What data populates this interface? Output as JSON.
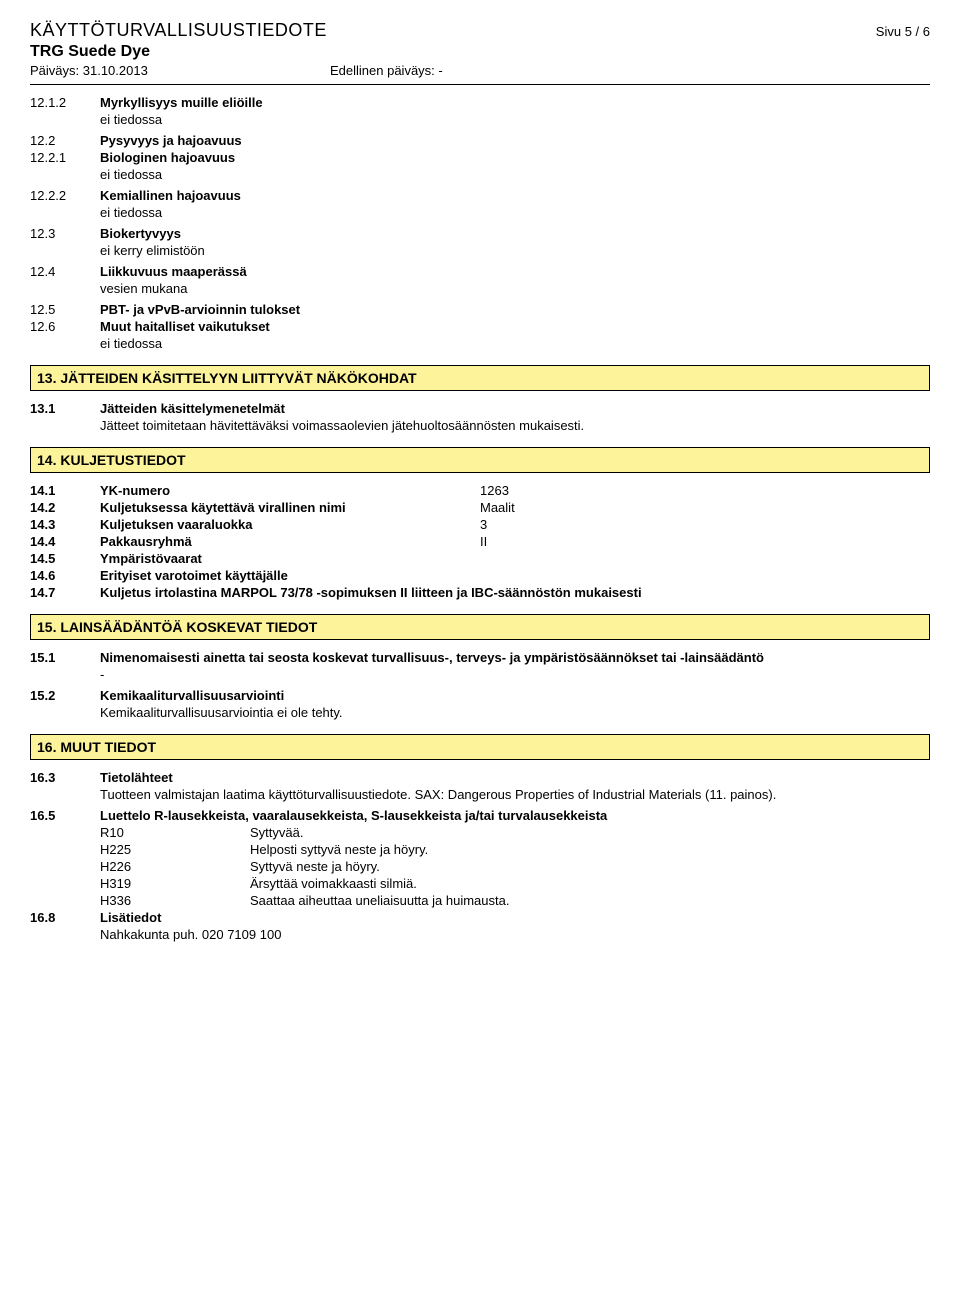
{
  "header": {
    "doc_title": "KÄYTTÖTURVALLISUUSTIEDOTE",
    "page": "Sivu  5 / 6",
    "product": "TRG Suede Dye",
    "date_label": "Päiväys: 31.10.2013",
    "prev_date_label": "Edellinen päiväys: -"
  },
  "items12": [
    {
      "num": "12.1.2",
      "title": "Myrkyllisyys muille eliöille",
      "body": "ei tiedossa"
    },
    {
      "num": "12.2",
      "title": "Pysyvyys ja hajoavuus",
      "body": null
    },
    {
      "num": "12.2.1",
      "title": "Biologinen hajoavuus",
      "body": "ei tiedossa"
    },
    {
      "num": "12.2.2",
      "title": "Kemiallinen hajoavuus",
      "body": "ei tiedossa"
    },
    {
      "num": "12.3",
      "title": "Biokertyvyys",
      "body": "ei kerry elimistöön"
    },
    {
      "num": "12.4",
      "title": "Liikkuvuus maaperässä",
      "body": "vesien mukana"
    },
    {
      "num": "12.5",
      "title": "PBT- ja vPvB-arvioinnin tulokset",
      "body": null
    },
    {
      "num": "12.6",
      "title": "Muut haitalliset vaikutukset",
      "body": "ei tiedossa"
    }
  ],
  "section13": {
    "heading": "13. JÄTTEIDEN KÄSITTELYYN LIITTYVÄT NÄKÖKOHDAT",
    "item": {
      "num": "13.1",
      "title": "Jätteiden käsittelymenetelmät",
      "body": "Jätteet toimitetaan hävitettäväksi voimassaolevien jätehuoltosäännösten mukaisesti."
    }
  },
  "section14": {
    "heading": "14. KULJETUSTIEDOT",
    "rows": [
      {
        "num": "14.1",
        "label": "YK-numero",
        "value": "1263"
      },
      {
        "num": "14.2",
        "label": "Kuljetuksessa käytettävä virallinen nimi",
        "value": "Maalit"
      },
      {
        "num": "14.3",
        "label": "Kuljetuksen vaaraluokka",
        "value": "3"
      },
      {
        "num": "14.4",
        "label": "Pakkausryhmä",
        "value": "II"
      },
      {
        "num": "14.5",
        "label": "Ympäristövaarat",
        "value": ""
      },
      {
        "num": "14.6",
        "label": "Erityiset varotoimet käyttäjälle",
        "value": ""
      }
    ],
    "row147": {
      "num": "14.7",
      "label": "Kuljetus irtolastina MARPOL 73/78 -sopimuksen II liitteen ja IBC-säännöstön mukaisesti"
    }
  },
  "section15": {
    "heading": "15. LAINSÄÄDÄNTÖÄ KOSKEVAT TIEDOT",
    "item1": {
      "num": "15.1",
      "title": "Nimenomaisesti ainetta tai seosta koskevat turvallisuus-, terveys- ja ympäristösäännökset tai -lainsäädäntö",
      "body": "-"
    },
    "item2": {
      "num": "15.2",
      "title": "Kemikaaliturvallisuusarviointi",
      "body": "Kemikaaliturvallisuusarviointia ei ole tehty."
    }
  },
  "section16": {
    "heading": "16. MUUT TIEDOT",
    "item163": {
      "num": "16.3",
      "title": "Tietolähteet",
      "body": "Tuotteen valmistajan laatima käyttöturvallisuustiedote.  SAX: Dangerous Properties of Industrial Materials (11. painos)."
    },
    "item165": {
      "num": "16.5",
      "title": "Luettelo R-lausekkeista, vaaralausekkeista, S-lausekkeista ja/tai turvalausekkeista",
      "codes": [
        {
          "code": "R10",
          "text": "Syttyvää."
        },
        {
          "code": "H225",
          "text": "Helposti syttyvä neste ja höyry."
        },
        {
          "code": "H226",
          "text": "Syttyvä neste ja höyry."
        },
        {
          "code": "H319",
          "text": "Ärsyttää voimakkaasti silmiä."
        },
        {
          "code": "H336",
          "text": "Saattaa aiheuttaa uneliaisuutta ja huimausta."
        }
      ]
    },
    "item168": {
      "num": "16.8",
      "title": "Lisätiedot",
      "body": "Nahkakunta   puh.   020 7109 100"
    }
  }
}
